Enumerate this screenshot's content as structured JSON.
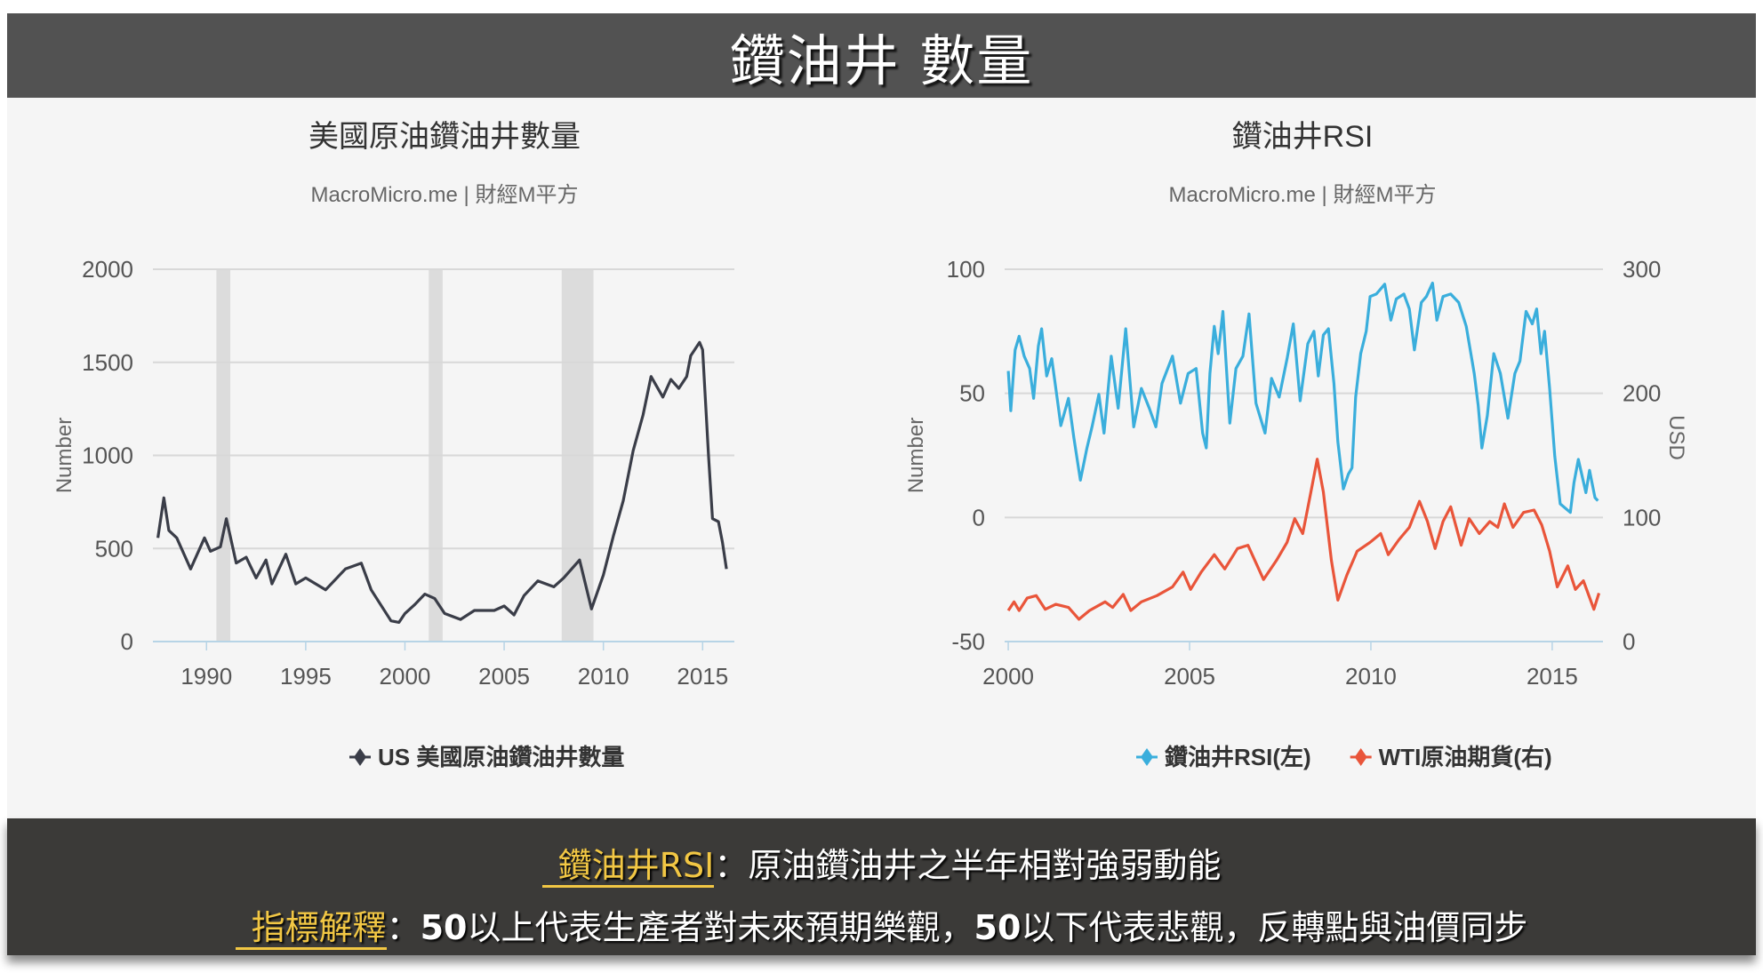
{
  "header": {
    "title": "鑽油井 數量"
  },
  "colors": {
    "rig_line": "#3a3d48",
    "rsi_line": "#3aaedc",
    "wti_line": "#e9553a",
    "recession": "#dcdcdc",
    "grid": "#d8d8d8",
    "axis": "#b7d4e6"
  },
  "chart_data": [
    {
      "type": "line",
      "title": "美國原油鑽油井數量",
      "subtitle": "MacroMicro.me | 財經M平方",
      "ylabel": "Number",
      "xlabel": "",
      "xlim": [
        1987.3,
        2016.6
      ],
      "ylim": [
        0,
        2000
      ],
      "x_ticks": [
        "1990",
        "1995",
        "2000",
        "2005",
        "2010",
        "2015"
      ],
      "y_ticks": [
        "0",
        "500",
        "1000",
        "1500",
        "2000"
      ],
      "grid": true,
      "legend_position": "bottom",
      "recession_shading": [
        [
          1990.5,
          1991.2
        ],
        [
          2001.2,
          2001.9
        ],
        [
          2007.9,
          2009.5
        ]
      ],
      "series": [
        {
          "name": "US 美國原油鑽油井數量",
          "color": "#3a3d48",
          "x": [
            1987.55,
            1987.85,
            1988.1,
            1988.5,
            1989.2,
            1989.9,
            1990.2,
            1990.7,
            1991.0,
            1991.5,
            1992.0,
            1992.5,
            1993.0,
            1993.3,
            1994.0,
            1994.5,
            1995.0,
            1996.0,
            1997.0,
            1997.8,
            1998.3,
            1999.3,
            1999.7,
            2000.0,
            2000.5,
            2001.0,
            2001.5,
            2002.0,
            2002.8,
            2003.5,
            2004.5,
            2005.0,
            2005.5,
            2006.0,
            2006.7,
            2007.5,
            2008.0,
            2008.8,
            2009.4,
            2010.0,
            2010.5,
            2011.0,
            2011.5,
            2012.0,
            2012.4,
            2013.0,
            2013.4,
            2013.8,
            2014.2,
            2014.4,
            2014.85,
            2015.0,
            2015.3,
            2015.5,
            2015.8,
            2016.0,
            2016.2
          ],
          "y": [
            557,
            772,
            597,
            557,
            390,
            557,
            485,
            509,
            660,
            422,
            453,
            342,
            438,
            310,
            469,
            310,
            342,
            278,
            390,
            421,
            278,
            111,
            103,
            151,
            199,
            255,
            231,
            151,
            119,
            167,
            167,
            191,
            143,
            247,
            326,
            294,
            342,
            438,
            175,
            358,
            565,
            756,
            1026,
            1217,
            1424,
            1313,
            1408,
            1360,
            1424,
            1535,
            1607,
            1567,
            994,
            660,
            644,
            533,
            390
          ]
        }
      ]
    },
    {
      "type": "line",
      "title": "鑽油井RSI",
      "subtitle": "MacroMicro.me | 財經M平方",
      "ylabel": "Number",
      "ylabel_right": "USD",
      "xlim": [
        1999.9,
        2016.4
      ],
      "ylim": [
        -50,
        100
      ],
      "ylim_right": [
        0,
        300
      ],
      "x_ticks": [
        "2000",
        "2005",
        "2010",
        "2015"
      ],
      "y_ticks": [
        "-50",
        "0",
        "50",
        "100"
      ],
      "y_ticks_right": [
        "0",
        "100",
        "200",
        "300"
      ],
      "grid": true,
      "legend_position": "bottom",
      "series": [
        {
          "name": "鑽油井RSI(左)",
          "color": "#3aaedc",
          "axis": "left",
          "x": [
            2000.0,
            2000.07,
            2000.19,
            2000.3,
            2000.44,
            2000.59,
            2000.7,
            2000.83,
            2000.92,
            2001.06,
            2001.2,
            2001.35,
            2001.45,
            2001.66,
            2001.81,
            2001.99,
            2002.17,
            2002.31,
            2002.5,
            2002.64,
            2002.84,
            2003.03,
            2003.24,
            2003.46,
            2003.67,
            2003.89,
            2004.07,
            2004.24,
            2004.53,
            2004.75,
            2004.96,
            2005.18,
            2005.36,
            2005.46,
            2005.56,
            2005.68,
            2005.79,
            2005.92,
            2006.11,
            2006.28,
            2006.47,
            2006.64,
            2006.83,
            2007.08,
            2007.26,
            2007.47,
            2007.69,
            2007.86,
            2008.05,
            2008.26,
            2008.43,
            2008.55,
            2008.69,
            2008.83,
            2008.98,
            2009.09,
            2009.24,
            2009.38,
            2009.48,
            2009.58,
            2009.72,
            2009.87,
            2009.98,
            2010.15,
            2010.38,
            2010.55,
            2010.7,
            2010.91,
            2011.06,
            2011.2,
            2011.39,
            2011.53,
            2011.7,
            2011.82,
            2011.99,
            2012.2,
            2012.42,
            2012.63,
            2012.85,
            2012.96,
            2013.06,
            2013.21,
            2013.39,
            2013.57,
            2013.78,
            2013.97,
            2014.11,
            2014.28,
            2014.45,
            2014.57,
            2014.69,
            2014.79,
            2014.93,
            2015.07,
            2015.22,
            2015.5,
            2015.6,
            2015.72,
            2015.93,
            2016.03,
            2016.18,
            2016.26
          ],
          "y": [
            59,
            43,
            67.5,
            73,
            65,
            60,
            48,
            69,
            76,
            57,
            64,
            48,
            37,
            48,
            32,
            15,
            28,
            36.5,
            49.6,
            34,
            65,
            44,
            76,
            36.5,
            52,
            44,
            36.5,
            54,
            65,
            46,
            58,
            60,
            34,
            28,
            58,
            77,
            66,
            83,
            38,
            60,
            65,
            82,
            46,
            34,
            56,
            48.5,
            64,
            78,
            47,
            70,
            75,
            57,
            73.5,
            76,
            54,
            30.5,
            11.5,
            17.5,
            20,
            48.5,
            66,
            75,
            89,
            90,
            94,
            79.5,
            88,
            90,
            84,
            67.5,
            86.6,
            89,
            94.4,
            79.5,
            89,
            90,
            86.6,
            77,
            58,
            45,
            28,
            41,
            66,
            58,
            40,
            58,
            63,
            83,
            78,
            84,
            66,
            75,
            52,
            24.6,
            5.5,
            2,
            14,
            23.4,
            10,
            19,
            8,
            6.7
          ]
        },
        {
          "name": "WTI原油期貨(右)",
          "color": "#e9553a",
          "axis": "right",
          "x": [
            2000.0,
            2000.16,
            2000.3,
            2000.52,
            2000.77,
            2001.02,
            2001.31,
            2001.66,
            2001.95,
            2002.24,
            2002.67,
            2002.88,
            2003.17,
            2003.38,
            2003.67,
            2004.1,
            2004.53,
            2004.82,
            2005.03,
            2005.32,
            2005.68,
            2005.97,
            2006.32,
            2006.61,
            2007.04,
            2007.4,
            2007.69,
            2007.9,
            2008.12,
            2008.33,
            2008.52,
            2008.69,
            2008.91,
            2009.09,
            2009.34,
            2009.62,
            2009.98,
            2010.27,
            2010.48,
            2010.77,
            2011.06,
            2011.34,
            2011.56,
            2011.77,
            2011.99,
            2012.2,
            2012.49,
            2012.71,
            2012.99,
            2013.28,
            2013.5,
            2013.68,
            2013.92,
            2014.21,
            2014.5,
            2014.71,
            2014.93,
            2015.14,
            2015.43,
            2015.64,
            2015.86,
            2016.15,
            2016.29
          ],
          "y": [
            25,
            32,
            25,
            35,
            37,
            26,
            30,
            27.5,
            18,
            25,
            32,
            27.5,
            38,
            25,
            32,
            37,
            44,
            56,
            42,
            56,
            70,
            58.5,
            75,
            77.6,
            50,
            65.6,
            80,
            99,
            87,
            118,
            147,
            120.5,
            65.6,
            33.4,
            53.7,
            72.8,
            80,
            87,
            70,
            82,
            92,
            113,
            96.7,
            75,
            96.7,
            108.6,
            77.6,
            99,
            87,
            96.7,
            92,
            111,
            92,
            104,
            106,
            94,
            72.8,
            44,
            61,
            42,
            49,
            26,
            39
          ]
        }
      ]
    }
  ],
  "footer": {
    "line1_term": "鑽油井RSI",
    "line1_text": "：原油鑽油井之半年相對強弱動能",
    "line2_term": "指標解釋",
    "line2_sep": "：",
    "line2_num1": "50",
    "line2_text1": "以上代表生產者對未來預期樂觀，",
    "line2_num2": "50",
    "line2_text2": "以下代表悲觀，反轉點與油價同步"
  }
}
